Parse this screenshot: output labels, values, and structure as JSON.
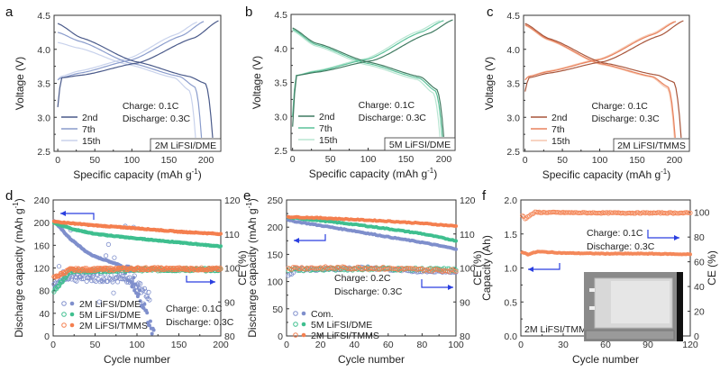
{
  "chart_data": [
    {
      "panel": "a",
      "type": "line",
      "xlabel": "Specific capacity (mAh g-1)",
      "ylabel": "Voltage (V)",
      "xlim": [
        -5,
        220
      ],
      "ylim": [
        2.5,
        4.5
      ],
      "xticks": [
        0,
        50,
        100,
        150,
        200
      ],
      "yticks": [
        2.5,
        3.0,
        3.5,
        4.0,
        4.5
      ],
      "annotation": [
        "Charge: 0.1C",
        "Discharge: 0.3C"
      ],
      "label_box": "2M LiFSI/DME",
      "legend": [
        "2nd",
        "7th",
        "15th"
      ],
      "colors": [
        "#4a5a8a",
        "#8a9ccc",
        "#c8d2ec"
      ],
      "series": [
        {
          "name": "2nd",
          "charge_cap": 217,
          "discharge_cap": 209,
          "charge_start": 3.15,
          "charge_plateau": [
            3.58,
            3.62,
            3.8,
            4.17,
            4.42
          ],
          "discharge_plateau": [
            4.38,
            4.17,
            3.82,
            3.6,
            3.5
          ]
        },
        {
          "name": "7th",
          "charge_cap": 197,
          "discharge_cap": 194,
          "charge_start": 3.55,
          "charge_plateau": [
            3.58,
            3.65,
            3.84,
            4.2,
            4.41
          ],
          "discharge_plateau": [
            4.25,
            4.12,
            3.8,
            3.6,
            3.45
          ]
        },
        {
          "name": "15th",
          "charge_cap": 188,
          "discharge_cap": 186,
          "charge_start": 3.55,
          "charge_plateau": [
            3.6,
            3.68,
            3.86,
            4.22,
            4.4
          ],
          "discharge_plateau": [
            4.1,
            4.02,
            3.78,
            3.58,
            3.4
          ]
        }
      ]
    },
    {
      "panel": "b",
      "type": "line",
      "xlabel": "Specific capacity (mAh g-1)",
      "ylabel": "Voltage (V)",
      "xlim": [
        -2,
        215
      ],
      "ylim": [
        2.5,
        4.5
      ],
      "xticks": [
        0,
        50,
        100,
        150,
        200
      ],
      "yticks": [
        2.5,
        3.0,
        3.5,
        4.0,
        4.5
      ],
      "annotation": [
        "Charge: 0.1C",
        "Discharge: 0.3C"
      ],
      "label_box": "5M LiFSI/DME",
      "legend": [
        "2nd",
        "7th",
        "15th"
      ],
      "colors": [
        "#3f7a60",
        "#5cc29a",
        "#b8e6d2"
      ],
      "series": [
        {
          "name": "2nd",
          "charge_cap": 212,
          "discharge_cap": 200,
          "charge_start": 2.85,
          "charge_plateau": [
            3.6,
            3.65,
            3.82,
            4.22,
            4.42
          ],
          "discharge_plateau": [
            4.3,
            4.08,
            3.8,
            3.58,
            3.4
          ]
        },
        {
          "name": "7th",
          "charge_cap": 200,
          "discharge_cap": 198,
          "charge_start": 3.0,
          "charge_plateau": [
            3.6,
            3.66,
            3.84,
            4.24,
            4.41
          ],
          "discharge_plateau": [
            4.28,
            4.06,
            3.78,
            3.56,
            3.38
          ]
        },
        {
          "name": "15th",
          "charge_cap": 195,
          "discharge_cap": 195,
          "charge_start": 3.0,
          "charge_plateau": [
            3.6,
            3.67,
            3.85,
            4.25,
            4.41
          ],
          "discharge_plateau": [
            4.26,
            4.04,
            3.76,
            3.54,
            3.35
          ]
        }
      ]
    },
    {
      "panel": "c",
      "type": "line",
      "xlabel": "Specific capacity (mAh g-1)",
      "ylabel": "Voltage (V)",
      "xlim": [
        -2,
        220
      ],
      "ylim": [
        2.5,
        4.5
      ],
      "xticks": [
        0,
        50,
        100,
        150,
        200
      ],
      "yticks": [
        2.5,
        3.0,
        3.5,
        4.0,
        4.5
      ],
      "annotation": [
        "Charge: 0.1C",
        "Discharge: 0.3C"
      ],
      "label_box": "2M LiFSI/TMMS",
      "legend": [
        "2nd",
        "7th",
        "15th"
      ],
      "colors": [
        "#a8553a",
        "#e8825e",
        "#f6c6ae"
      ],
      "series": [
        {
          "name": "2nd",
          "charge_cap": 212,
          "discharge_cap": 209,
          "charge_start": 3.38,
          "charge_plateau": [
            3.58,
            3.65,
            3.82,
            4.2,
            4.42
          ],
          "discharge_plateau": [
            4.38,
            4.16,
            3.8,
            3.62,
            3.52
          ]
        },
        {
          "name": "7th",
          "charge_cap": 202,
          "discharge_cap": 201,
          "charge_start": 3.55,
          "charge_plateau": [
            3.6,
            3.67,
            3.85,
            4.22,
            4.41
          ],
          "discharge_plateau": [
            4.36,
            4.15,
            3.79,
            3.6,
            3.45
          ]
        },
        {
          "name": "15th",
          "charge_cap": 200,
          "discharge_cap": 200,
          "charge_start": 3.55,
          "charge_plateau": [
            3.6,
            3.68,
            3.86,
            4.23,
            4.41
          ],
          "discharge_plateau": [
            4.35,
            4.14,
            3.78,
            3.59,
            3.43
          ]
        }
      ]
    },
    {
      "panel": "d",
      "type": "scatter",
      "xlabel": "Cycle number",
      "ylabel": "Discharge capacity (mAh g-1)",
      "y2label": "CE (%)",
      "xlim": [
        0,
        200
      ],
      "ylim": [
        0,
        240
      ],
      "y2lim": [
        80,
        120
      ],
      "xticks": [
        0,
        50,
        100,
        150,
        200
      ],
      "yticks": [
        0,
        40,
        80,
        120,
        160,
        200,
        240
      ],
      "y2ticks": [
        80,
        90,
        100,
        110,
        120
      ],
      "annotation": [
        "Charge: 0.1C",
        "Discharge: 0.3C"
      ],
      "legend": [
        "2M LiFSI/DME",
        "5M LiFSI/DME",
        "2M LiFSI/TMMS"
      ],
      "colors": [
        "#7f8fcc",
        "#3fbf8f",
        "#f47f4f"
      ],
      "series": [
        {
          "name": "2M LiFSI/DME capacity",
          "points": [
            [
              0,
              205
            ],
            [
              10,
              188
            ],
            [
              20,
              172
            ],
            [
              30,
              160
            ],
            [
              40,
              148
            ],
            [
              50,
              140
            ],
            [
              60,
              135
            ],
            [
              70,
              130
            ],
            [
              80,
              125
            ],
            [
              90,
              110
            ],
            [
              100,
              80
            ],
            [
              110,
              45
            ],
            [
              115,
              20
            ],
            [
              120,
              5
            ]
          ]
        },
        {
          "name": "5M LiFSI/DME capacity",
          "points": [
            [
              0,
              200
            ],
            [
              25,
              188
            ],
            [
              50,
              180
            ],
            [
              100,
              172
            ],
            [
              150,
              165
            ],
            [
              200,
              158
            ]
          ]
        },
        {
          "name": "2M LiFSI/TMMS capacity",
          "points": [
            [
              0,
              202
            ],
            [
              50,
              195
            ],
            [
              100,
              190
            ],
            [
              150,
              184
            ],
            [
              200,
              180
            ]
          ]
        },
        {
          "name": "2M LiFSI/DME CE",
          "points": [
            [
              0,
              95
            ],
            [
              10,
              97.5
            ],
            [
              50,
              97.5
            ],
            [
              80,
              97
            ],
            [
              100,
              95
            ],
            [
              115,
              92
            ]
          ]
        },
        {
          "name": "5M LiFSI/DME CE",
          "points": [
            [
              0,
              93
            ],
            [
              20,
              99
            ],
            [
              100,
              99.5
            ],
            [
              200,
              99.5
            ]
          ]
        },
        {
          "name": "2M LiFSI/TMMS CE",
          "points": [
            [
              0,
              97
            ],
            [
              20,
              99.5
            ],
            [
              100,
              99.8
            ],
            [
              200,
              99.7
            ]
          ]
        }
      ]
    },
    {
      "panel": "e",
      "type": "scatter",
      "xlabel": "Cycle number",
      "ylabel": "Discharge capacity (mAh g-1)",
      "y2label": "CE (%)",
      "xlim": [
        0,
        100
      ],
      "ylim": [
        0,
        250
      ],
      "y2lim": [
        80,
        120
      ],
      "xticks": [
        0,
        20,
        40,
        60,
        80,
        100
      ],
      "yticks": [
        0,
        50,
        100,
        150,
        200,
        250
      ],
      "y2ticks": [
        80,
        90,
        100,
        110,
        120
      ],
      "annotation": [
        "Charge: 0.2C",
        "Discharge: 0.3C"
      ],
      "legend": [
        "Com.",
        "5M LiFSI/DME",
        "2M LiFSI/TMMS"
      ],
      "colors": [
        "#7f8fcc",
        "#3fbf8f",
        "#f47f4f"
      ],
      "series": [
        {
          "name": "Com. capacity",
          "points": [
            [
              0,
              213
            ],
            [
              20,
              203
            ],
            [
              40,
              193
            ],
            [
              60,
              182
            ],
            [
              80,
              172
            ],
            [
              100,
              160
            ]
          ]
        },
        {
          "name": "5M LiFSI/DME capacity",
          "points": [
            [
              0,
              218
            ],
            [
              20,
              212
            ],
            [
              40,
              205
            ],
            [
              60,
              197
            ],
            [
              80,
              188
            ],
            [
              100,
              175
            ]
          ]
        },
        {
          "name": "2M LiFSI/TMMS capacity",
          "points": [
            [
              0,
              219
            ],
            [
              20,
              217
            ],
            [
              40,
              214
            ],
            [
              60,
              211
            ],
            [
              80,
              207
            ],
            [
              100,
              202
            ]
          ]
        },
        {
          "name": "Com. CE",
          "points": [
            [
              0,
              97
            ],
            [
              5,
              99.5
            ],
            [
              50,
              100
            ],
            [
              80,
              99
            ],
            [
              100,
              99
            ]
          ]
        },
        {
          "name": "5M LiFSI/DME CE",
          "points": [
            [
              0,
              99.5
            ],
            [
              50,
              99.8
            ],
            [
              100,
              99.5
            ]
          ]
        },
        {
          "name": "2M LiFSI/TMMS CE",
          "points": [
            [
              0,
              100
            ],
            [
              50,
              100
            ],
            [
              100,
              99.2
            ]
          ]
        }
      ]
    },
    {
      "panel": "f",
      "type": "scatter",
      "xlabel": "Cycle number",
      "ylabel": "Capacity (Ah)",
      "y2label": "CE (%)",
      "xlim": [
        0,
        120
      ],
      "ylim": [
        0.0,
        2.0
      ],
      "y2lim": [
        0,
        110
      ],
      "xticks": [
        0,
        30,
        60,
        90,
        120
      ],
      "yticks": [
        0.0,
        0.5,
        1.0,
        1.5,
        2.0
      ],
      "y2ticks": [
        0,
        20,
        40,
        60,
        80,
        100
      ],
      "annotation": [
        "Charge: 0.1C",
        "Discharge: 0.3C"
      ],
      "label_box": "2M LiFSI/TMMS",
      "inset": "pouch-cell-photo",
      "colors": [
        "#f4885a"
      ],
      "series": [
        {
          "name": "capacity",
          "points": [
            [
              0,
              1.24
            ],
            [
              5,
              1.2
            ],
            [
              12,
              1.24
            ],
            [
              30,
              1.22
            ],
            [
              60,
              1.21
            ],
            [
              90,
              1.21
            ],
            [
              120,
              1.2
            ]
          ]
        },
        {
          "name": "CE",
          "points": [
            [
              0,
              99
            ],
            [
              3,
              95
            ],
            [
              10,
              100
            ],
            [
              60,
              99.5
            ],
            [
              120,
              99.5
            ]
          ]
        }
      ]
    }
  ],
  "panel_labels": [
    "a",
    "b",
    "c",
    "d",
    "e",
    "f"
  ]
}
